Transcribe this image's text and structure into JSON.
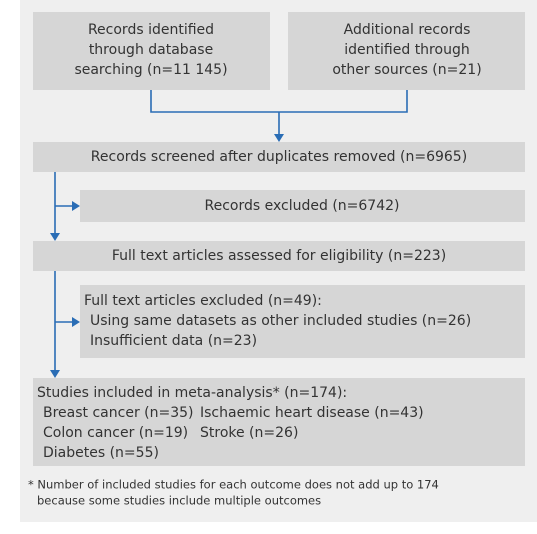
{
  "boxes": [
    {
      "lines": [
        "Records identified",
        "through database",
        "searching (n=11 145)"
      ]
    },
    {
      "lines": [
        "Additional records",
        "identified through",
        "other sources (n=21)"
      ]
    },
    {
      "lines": [
        "Records screened after duplicates removed (n=6965)"
      ]
    },
    {
      "lines": [
        "Records excluded (n=6742)"
      ]
    },
    {
      "lines": [
        "Full text articles assessed for eligibility (n=223)"
      ]
    },
    {
      "title": "Full text articles excluded (n=49):",
      "items": [
        "Using same datasets as other included studies (n=26)",
        "Insufficient data (n=23)"
      ]
    },
    {
      "title": "Studies included in meta-analysis* (n=174):",
      "outcomes": [
        "Breast cancer (n=35)",
        "Ischaemic heart disease (n=43)",
        "Colon cancer (n=19)",
        "Stroke (n=26)",
        "Diabetes (n=55)"
      ]
    }
  ],
  "footnote": [
    "* Number of included studies for each outcome does not add up to 174",
    "because some studies include multiple outcomes"
  ]
}
